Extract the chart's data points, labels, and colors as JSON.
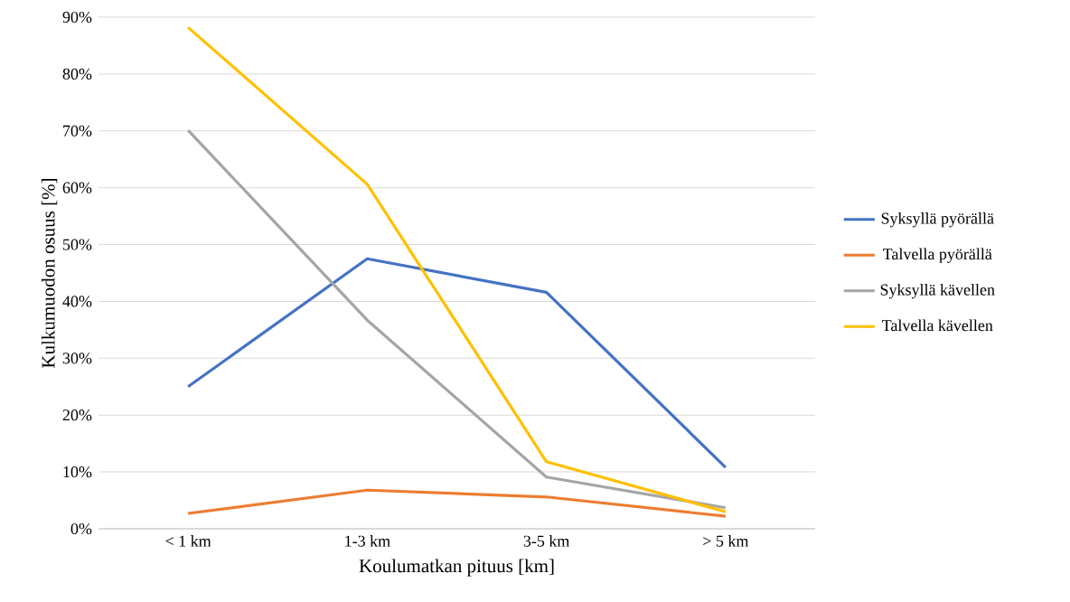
{
  "chart_data": {
    "type": "line",
    "xlabel": "Koulumatkan pituus [km]",
    "ylabel": "Kulkumuodon osuus [%]",
    "categories": [
      "< 1 km",
      "1-3 km",
      "3-5 km",
      "> 5 km"
    ],
    "series": [
      {
        "name": "Syksyllä pyörällä",
        "color": "#4472c4",
        "values": [
          25.0,
          47.5,
          41.6,
          10.8
        ]
      },
      {
        "name": "Talvella pyörällä",
        "color": "#ed7d31",
        "values": [
          2.7,
          6.8,
          5.6,
          2.2
        ]
      },
      {
        "name": "Syksyllä kävellen",
        "color": "#a5a5a5",
        "values": [
          70.1,
          36.7,
          9.1,
          3.7
        ]
      },
      {
        "name": "Talvella kävellen",
        "color": "#ffc000",
        "values": [
          88.2,
          60.6,
          11.8,
          3.0
        ]
      }
    ],
    "ylim": [
      0,
      90
    ],
    "yticks": [
      {
        "value": 0,
        "label": "0%"
      },
      {
        "value": 10,
        "label": "10%"
      },
      {
        "value": 20,
        "label": "20%"
      },
      {
        "value": 30,
        "label": "30%"
      },
      {
        "value": 40,
        "label": "40%"
      },
      {
        "value": 50,
        "label": "50%"
      },
      {
        "value": 60,
        "label": "60%"
      },
      {
        "value": 70,
        "label": "70%"
      },
      {
        "value": 80,
        "label": "80%"
      },
      {
        "value": 90,
        "label": "90%"
      }
    ],
    "grid": "y",
    "legend": "right",
    "marker": "none",
    "line_style": "solid"
  }
}
